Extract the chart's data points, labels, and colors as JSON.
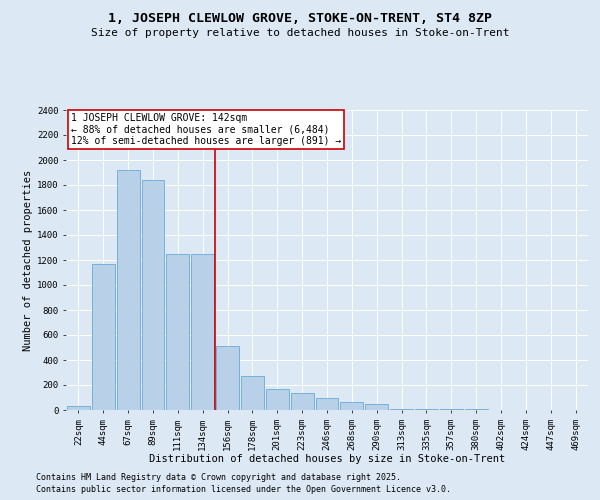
{
  "title": "1, JOSEPH CLEWLOW GROVE, STOKE-ON-TRENT, ST4 8ZP",
  "subtitle": "Size of property relative to detached houses in Stoke-on-Trent",
  "xlabel": "Distribution of detached houses by size in Stoke-on-Trent",
  "ylabel": "Number of detached properties",
  "categories": [
    "22sqm",
    "44sqm",
    "67sqm",
    "89sqm",
    "111sqm",
    "134sqm",
    "156sqm",
    "178sqm",
    "201sqm",
    "223sqm",
    "246sqm",
    "268sqm",
    "290sqm",
    "313sqm",
    "335sqm",
    "357sqm",
    "380sqm",
    "402sqm",
    "424sqm",
    "447sqm",
    "469sqm"
  ],
  "values": [
    30,
    1170,
    1920,
    1840,
    1250,
    1250,
    510,
    270,
    165,
    140,
    100,
    65,
    50,
    10,
    10,
    5,
    5,
    3,
    3,
    2,
    2
  ],
  "bar_color": "#b8d0e8",
  "bar_edge_color": "#6aaad4",
  "vline_x_index": 5.5,
  "vline_color": "#cc0000",
  "annotation_text": "1 JOSEPH CLEWLOW GROVE: 142sqm\n← 88% of detached houses are smaller (6,484)\n12% of semi-detached houses are larger (891) →",
  "annotation_box_color": "#ffffff",
  "annotation_box_edge": "#cc0000",
  "ylim": [
    0,
    2400
  ],
  "yticks": [
    0,
    200,
    400,
    600,
    800,
    1000,
    1200,
    1400,
    1600,
    1800,
    2000,
    2200,
    2400
  ],
  "background_color": "#dce9f5",
  "grid_color": "#ffffff",
  "footer1": "Contains HM Land Registry data © Crown copyright and database right 2025.",
  "footer2": "Contains public sector information licensed under the Open Government Licence v3.0.",
  "title_fontsize": 9.5,
  "subtitle_fontsize": 8,
  "axis_label_fontsize": 7.5,
  "tick_fontsize": 6.5,
  "annotation_fontsize": 7,
  "footer_fontsize": 6
}
